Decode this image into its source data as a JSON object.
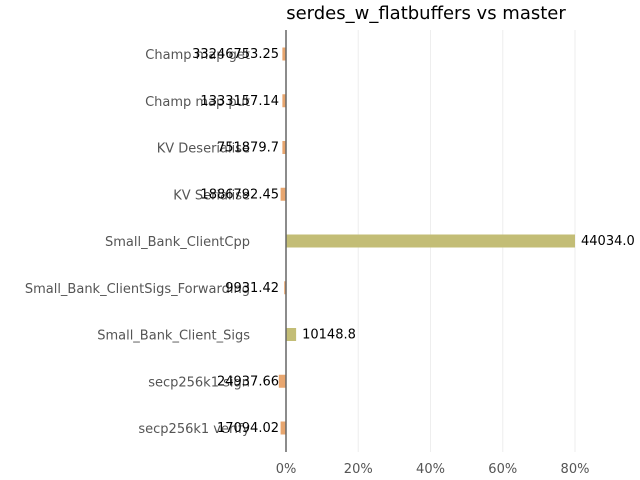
{
  "chart_data": {
    "type": "bar",
    "orientation": "horizontal",
    "title": "serdes_w_flatbuffers vs master",
    "xlabel": "",
    "ylabel": "",
    "categories": [
      "Champ map get",
      "Champ map put",
      "KV Deserialise",
      "KV Serialise",
      "Small_Bank_ClientCpp",
      "Small_Bank_ClientSigs_Forwarding",
      "Small_Bank_Client_Sigs",
      "secp256k1 sign",
      "secp256k1 verify"
    ],
    "values": [
      -1,
      -1,
      -1,
      -1.5,
      80,
      -0.5,
      2.8,
      -2,
      -1.5
    ],
    "data_labels": [
      "33246753.25",
      "1333157.14",
      "751879.7",
      "1886792.45",
      "44034.0",
      "9931.42",
      "10148.8",
      "24937.66",
      "17094.02"
    ],
    "xlim": [
      -5,
      95
    ],
    "xticks": [
      0,
      20,
      40,
      60,
      80
    ],
    "xtick_labels": [
      "0%",
      "20%",
      "40%",
      "60%",
      "80%"
    ],
    "grid": true,
    "colors": {
      "positive": "#c3bd76",
      "negative": "#e8a66f",
      "axis": "#666666",
      "grid": "#eeeeee"
    }
  }
}
